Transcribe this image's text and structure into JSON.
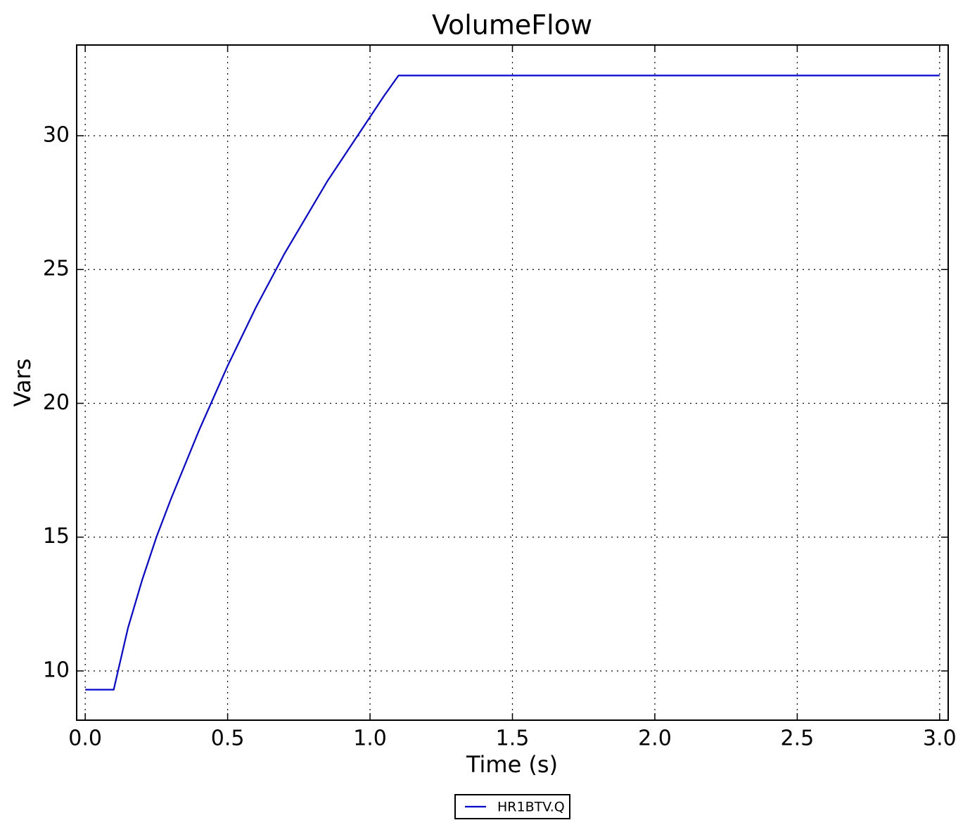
{
  "chart_data": {
    "type": "line",
    "title": "VolumeFlow",
    "x_label": "Time (s)",
    "y_label": "Vars",
    "x": [
      0.0,
      0.1,
      0.15,
      0.2,
      0.25,
      0.3,
      0.35,
      0.4,
      0.45,
      0.5,
      0.55,
      0.6,
      0.65,
      0.7,
      0.75,
      0.8,
      0.85,
      0.9,
      0.95,
      1.0,
      1.05,
      1.1,
      3.0
    ],
    "series": [
      {
        "name": "HR1BTV.Q",
        "color": "#0000ff",
        "values": [
          9.3,
          9.3,
          11.6,
          13.4,
          15.0,
          16.4,
          17.7,
          19.0,
          20.2,
          21.4,
          22.5,
          23.6,
          24.6,
          25.6,
          26.5,
          27.4,
          28.3,
          29.1,
          29.9,
          30.7,
          31.5,
          32.25,
          32.25
        ]
      }
    ],
    "xlim": [
      -0.03,
      3.03
    ],
    "xticks": [
      {
        "value": 0,
        "label": "0.0"
      },
      0.5,
      {
        "value": 1,
        "label": "1.0"
      },
      1.5,
      {
        "value": 2,
        "label": "2.0"
      },
      2.5,
      {
        "value": 3,
        "label": "3.0"
      }
    ],
    "ylim": [
      8.16,
      33.39
    ],
    "yticks": [
      10,
      15,
      20,
      25,
      30
    ],
    "grid": true,
    "legend": "bottom"
  }
}
